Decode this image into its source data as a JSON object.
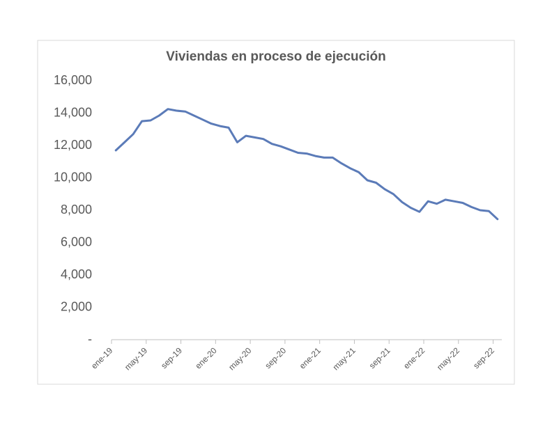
{
  "chart_data": {
    "type": "line",
    "title": "Viviendas en proceso de ejecución",
    "categories": [
      "ene-19",
      null,
      null,
      null,
      "may-19",
      null,
      null,
      null,
      "sep-19",
      null,
      null,
      null,
      "ene-20",
      null,
      null,
      null,
      "may-20",
      null,
      null,
      null,
      "sep-20",
      null,
      null,
      null,
      "ene-21",
      null,
      null,
      null,
      "may-21",
      null,
      null,
      null,
      "sep-21",
      null,
      null,
      null,
      "ene-22",
      null,
      null,
      null,
      "may-22",
      null,
      null,
      null,
      "sep-22"
    ],
    "series": [
      {
        "name": "Viviendas en proceso de ejecución",
        "color": "#5b7bb8",
        "values": [
          11700,
          12200,
          12700,
          13500,
          13550,
          13850,
          14250,
          14150,
          14100,
          13850,
          13600,
          13350,
          13200,
          13100,
          12200,
          12600,
          12500,
          12400,
          12100,
          11950,
          11750,
          11550,
          11500,
          11350,
          11250,
          11250,
          10900,
          10600,
          10350,
          9850,
          9700,
          9300,
          9000,
          8500,
          8150,
          7900,
          8550,
          8400,
          8650,
          8550,
          8450,
          8200,
          8000,
          7950,
          7450
        ]
      }
    ],
    "ylim": [
      0,
      16000
    ],
    "yticks": [
      {
        "value": 0,
        "label": "-"
      },
      {
        "value": 2000,
        "label": "2,000"
      },
      {
        "value": 4000,
        "label": "4,000"
      },
      {
        "value": 6000,
        "label": "6,000"
      },
      {
        "value": 8000,
        "label": "8,000"
      },
      {
        "value": 10000,
        "label": "10,000"
      },
      {
        "value": 12000,
        "label": "12,000"
      },
      {
        "value": 14000,
        "label": "14,000"
      },
      {
        "value": 16000,
        "label": "16,000"
      }
    ],
    "grid": false
  }
}
